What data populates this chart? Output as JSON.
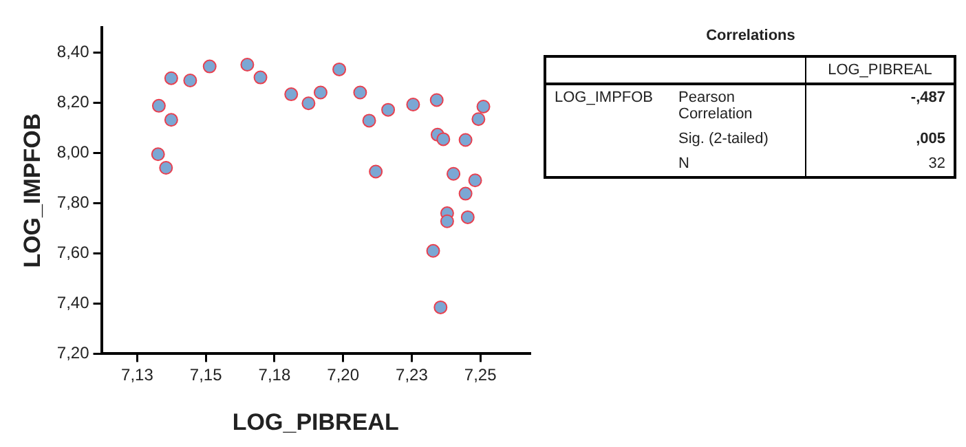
{
  "chart_data": [
    {
      "type": "scatter",
      "xlabel": "LOG_PIBREAL",
      "ylabel": "LOG_IMPFOB",
      "marker": "circle",
      "grid": false,
      "legend": false,
      "xlim": [
        7.112,
        7.268
      ],
      "ylim": [
        7.2,
        8.5
      ],
      "xticks": [
        {
          "value": 7.125,
          "label": "7,13"
        },
        {
          "value": 7.15,
          "label": "7,15"
        },
        {
          "value": 7.175,
          "label": "7,18"
        },
        {
          "value": 7.2,
          "label": "7,20"
        },
        {
          "value": 7.225,
          "label": "7,23"
        },
        {
          "value": 7.25,
          "label": "7,25"
        }
      ],
      "yticks": [
        {
          "value": 7.2,
          "label": "7,20"
        },
        {
          "value": 7.4,
          "label": "7,40"
        },
        {
          "value": 7.6,
          "label": "7,60"
        },
        {
          "value": 7.8,
          "label": "7,80"
        },
        {
          "value": 8.0,
          "label": "8,00"
        },
        {
          "value": 8.2,
          "label": "8,20"
        },
        {
          "value": 8.4,
          "label": "8,40"
        }
      ],
      "series": [
        {
          "color": "#7ba7d4",
          "x": [
            7.1329,
            7.1374,
            7.1326,
            7.1355,
            7.1374,
            7.1443,
            7.1514,
            7.1651,
            7.1699,
            7.1811,
            7.1874,
            7.1918,
            7.1986,
            7.2062,
            7.2095,
            7.2164,
            7.2255,
            7.2341,
            7.2511,
            7.2493,
            7.2344,
            7.2365,
            7.2446,
            7.2119,
            7.2402,
            7.2481,
            7.2446,
            7.2379,
            7.2379,
            7.2454,
            7.2328,
            7.2355
          ],
          "values": [
            8.188,
            8.132,
            7.995,
            7.941,
            8.298,
            8.289,
            8.345,
            8.352,
            8.301,
            8.234,
            8.198,
            8.241,
            8.333,
            8.241,
            8.129,
            8.172,
            8.193,
            8.211,
            8.185,
            8.135,
            8.073,
            8.055,
            8.052,
            7.926,
            7.917,
            7.891,
            7.838,
            7.76,
            7.728,
            7.744,
            7.61,
            7.385
          ]
        }
      ]
    },
    {
      "type": "other",
      "title": "Correlations",
      "annotations": [
        "LOG_PIBREAL",
        "LOG_IMPFOB",
        "Pearson Correlation",
        "-,487",
        "Sig. (2-tailed)",
        ",005",
        "N",
        "32"
      ]
    }
  ]
}
